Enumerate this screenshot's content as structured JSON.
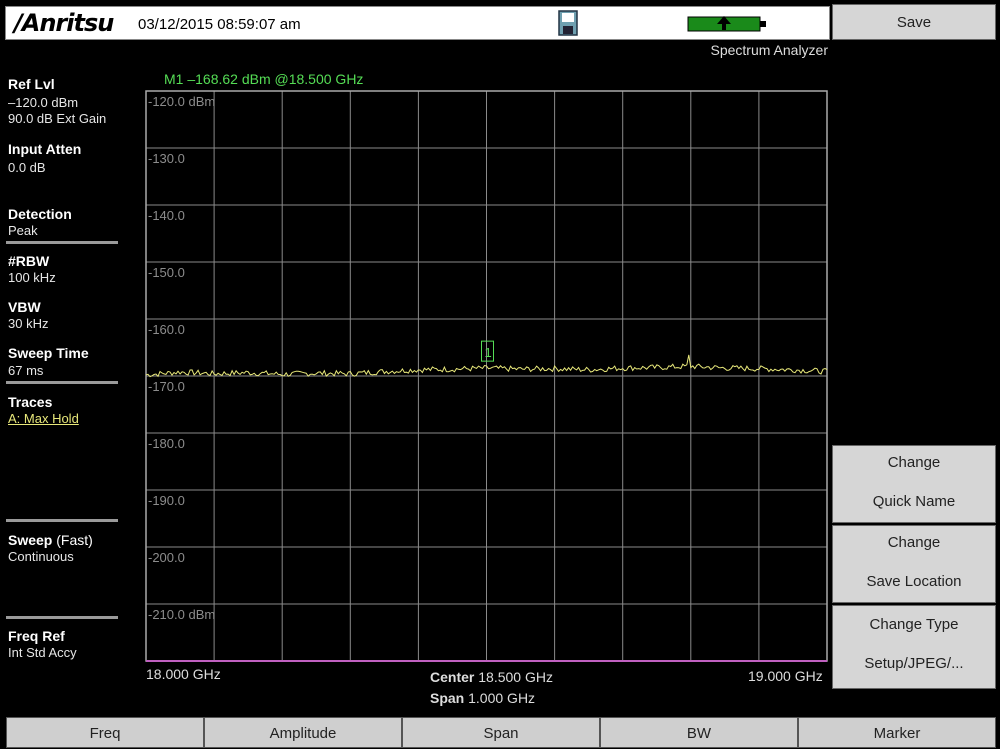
{
  "header": {
    "logo": "/Anritsu",
    "datetime": "03/12/2015 08:59:07 am",
    "mode": "Spectrum Analyzer",
    "marker_readout": "M1 –168.62 dBm @18.500 GHz"
  },
  "left_panel": {
    "ref_lvl_label": "Ref Lvl",
    "ref_lvl_value": "–120.0 dBm",
    "ext_gain": "90.0 dB Ext Gain",
    "input_atten_label": "Input Atten",
    "input_atten_value": "0.0 dB",
    "detection_label": "Detection",
    "detection_value": "Peak",
    "rbw_label": "#RBW",
    "rbw_value": "100 kHz",
    "vbw_label": "VBW",
    "vbw_value": "30 kHz",
    "sweep_time_label": "Sweep Time",
    "sweep_time_value": "67 ms",
    "traces_label": "Traces",
    "traces_value": "A: Max Hold",
    "sweep_label": "Sweep",
    "sweep_mode": "(Fast)",
    "sweep_value": "Continuous",
    "freq_ref_label": "Freq Ref",
    "freq_ref_value": "Int Std Accy"
  },
  "right_panel": {
    "save": "Save",
    "change_quick_name_1": "Change",
    "change_quick_name_2": "Quick Name",
    "change_save_location_1": "Change",
    "change_save_location_2": "Save Location",
    "change_type_1": "Change Type",
    "change_type_2": "Setup/JPEG/..."
  },
  "bottom_keys": [
    "Freq",
    "Amplitude",
    "Span",
    "BW",
    "Marker"
  ],
  "plot": {
    "start_freq": "18.000 GHz",
    "stop_freq": "19.000 GHz",
    "center_label": "Center",
    "center_value": "18.500 GHz",
    "span_label": "Span",
    "span_value": "1.000 GHz",
    "marker_label": "1"
  },
  "chart_data": {
    "type": "line",
    "x_range_ghz": [
      18.0,
      19.0
    ],
    "ylim": [
      -220,
      -120
    ],
    "y_tick_labels": [
      "-120.0 dBm",
      "-130.0",
      "-140.0",
      "-150.0",
      "-160.0",
      "-170.0",
      "-180.0",
      "-190.0",
      "-200.0",
      "-210.0 dBm"
    ],
    "grid": true,
    "series": [
      {
        "x": [
          18.0,
          18.05,
          18.1,
          18.15,
          18.2,
          18.25,
          18.3,
          18.35,
          18.4,
          18.45,
          18.5,
          18.55,
          18.6,
          18.65,
          18.7,
          18.75,
          18.8,
          18.85,
          18.9,
          18.95,
          19.0
        ],
        "values": [
          -169.8,
          -169.3,
          -169.6,
          -169.4,
          -169.7,
          -169.5,
          -169.6,
          -169.2,
          -168.9,
          -168.8,
          -168.62,
          -168.8,
          -168.7,
          -168.9,
          -168.6,
          -168.5,
          -168.3,
          -168.6,
          -168.7,
          -168.9,
          -169.2
        ]
      }
    ],
    "marker": {
      "x": 18.5,
      "y": -168.62
    }
  },
  "colors": {
    "trace": "#e8e87a",
    "marker": "#55dd55",
    "grid": "#8a8a8a",
    "baseline": "#c060c0"
  }
}
